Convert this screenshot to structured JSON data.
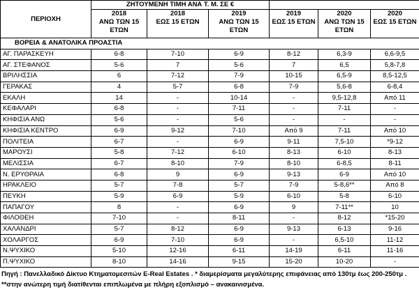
{
  "table": {
    "region_header": "ΠΕΡΙΟΧΗ",
    "caption": "ΖΗΤΟΥΜΕΝΗ ΤΙΜΗ ΑΝΑ Τ. Μ. ΣΕ €",
    "columns": [
      {
        "year": "2018",
        "label": "ΑΝΩ ΤΩΝ 15 ΕΤΩΝ"
      },
      {
        "year": "2018",
        "label": "ΕΩΣ 15 ΕΤΩΝ"
      },
      {
        "year": "2019",
        "label": "ΑΝΩ ΤΩΝ 15 ΕΤΩΝ"
      },
      {
        "year": "2019",
        "label": "ΕΩΣ 15 ΕΤΩΝ"
      },
      {
        "year": "2020",
        "label": "ΑΝΩ ΤΩΝ 15 ΕΤΩΝ"
      },
      {
        "year": "2020",
        "label": "ΕΩΣ 15 ΕΤΩΝ"
      }
    ],
    "section": "ΒΟΡΕΙΑ & ΑΝΑΤΟΛΙΚΑ ΠΡΟΑΣΤΙΑ",
    "rows": [
      [
        "ΑΓ. ΠΑΡΑΣΚΕΥΗ",
        "6-8",
        "7-10",
        "6-9",
        "8-12",
        "6,3-9",
        "6,6-9,5"
      ],
      [
        "ΑΓ. ΣΤΕΦΑΝΟΣ",
        "5-6",
        "7",
        "5-6",
        "7",
        "6,5",
        "5,8-7,8"
      ],
      [
        "ΒΡΙΛΗΣΣΙΑ",
        "6",
        "7-12",
        "7-9",
        "10-15",
        "6,5-9",
        "8,5-12,5"
      ],
      [
        "ΓΕΡΑΚΑΣ",
        "4",
        "5-7",
        "6-8",
        "7-9",
        "5,6-8",
        "6-8,4"
      ],
      [
        "ΕΚΑΛΗ",
        "14",
        "-",
        "10-14",
        "-",
        "9,5-12,8",
        "Από 11"
      ],
      [
        "ΚΕΦΑΛΑΡΙ",
        "6-8",
        "-",
        "7-11",
        "-",
        "7-11",
        "-"
      ],
      [
        "ΚΗΦΙΣΙΑ ΑΝΩ",
        "5-6",
        "-",
        "5-6",
        "-",
        "-",
        "-"
      ],
      [
        "ΚΗΦΙΣΙΑ ΚΕΝΤΡΟ",
        "6-9",
        "9-12",
        "7-10",
        "Από 9",
        "7-11",
        "Από 10"
      ],
      [
        "ΠΟΛΙΤΕΙΑ",
        "6-7",
        "-",
        "6-9",
        "9-11",
        "7,5-10",
        "*9-12"
      ],
      [
        "ΜΑΡΟΥΣΙ",
        "5-8",
        "7-12",
        "6-10",
        "8-13",
        "6-10",
        "8-13"
      ],
      [
        "ΜΕΛΙΣΣΙΑ",
        "6-7",
        "8-10",
        "7-9",
        "8-10",
        "6-8,5",
        "8-11"
      ],
      [
        "Ν. ΕΡΥΘΡΑΙΑ",
        "6-8",
        "9",
        "6-9",
        "9-13",
        "6-9",
        "Από 10"
      ],
      [
        "ΗΡΑΚΛΕΙΟ",
        "5-7",
        "7-8",
        "5-7",
        "7-9",
        "5-8,6**",
        "Από 8"
      ],
      [
        "ΠΕΥΚΗ",
        "5-9",
        "6-9",
        "5-9",
        "6-10",
        "5-8",
        "6-10"
      ],
      [
        "ΠΑΠΑΓΟΥ",
        "8",
        "-",
        "6-9",
        "9",
        "7-11**",
        "10"
      ],
      [
        "ΦΙΛΟΘΕΗ",
        "7-10",
        "-",
        "8-11",
        "-",
        "8-12",
        "*15-20"
      ],
      [
        "ΧΑΛΑΝΔΡΙ",
        "5-7",
        "8-12",
        "6-9",
        "9-13",
        "6-13",
        "9-16"
      ],
      [
        "ΧΟΛΑΡΓΟΣ",
        "6-9",
        "7-10",
        "6-9",
        "-",
        "6,5-10",
        "11-12"
      ],
      [
        "Ν.ΨΥΧΙΚΟ",
        "5-10",
        "12-16",
        "6-11",
        "14-19",
        "6-11",
        "11-16"
      ],
      [
        "Π.ΨΥΧΙΚΟ",
        "8-10",
        "14-16",
        "9-15",
        "15-20",
        "10-20",
        "-"
      ]
    ]
  },
  "footnote": "Πηγή : Πανελλαδικό Δίκτυο Κτηματομεσιτών E-Real Estates . * διαμερίσματα μεγαλύτερης επιφάνειας από 130τμ έως 200-250τμ . **στην ανώτερη τιμή διατίθενται επιπλωμένα με πλήρη εξοπλισμό – ανακαινισμένα."
}
